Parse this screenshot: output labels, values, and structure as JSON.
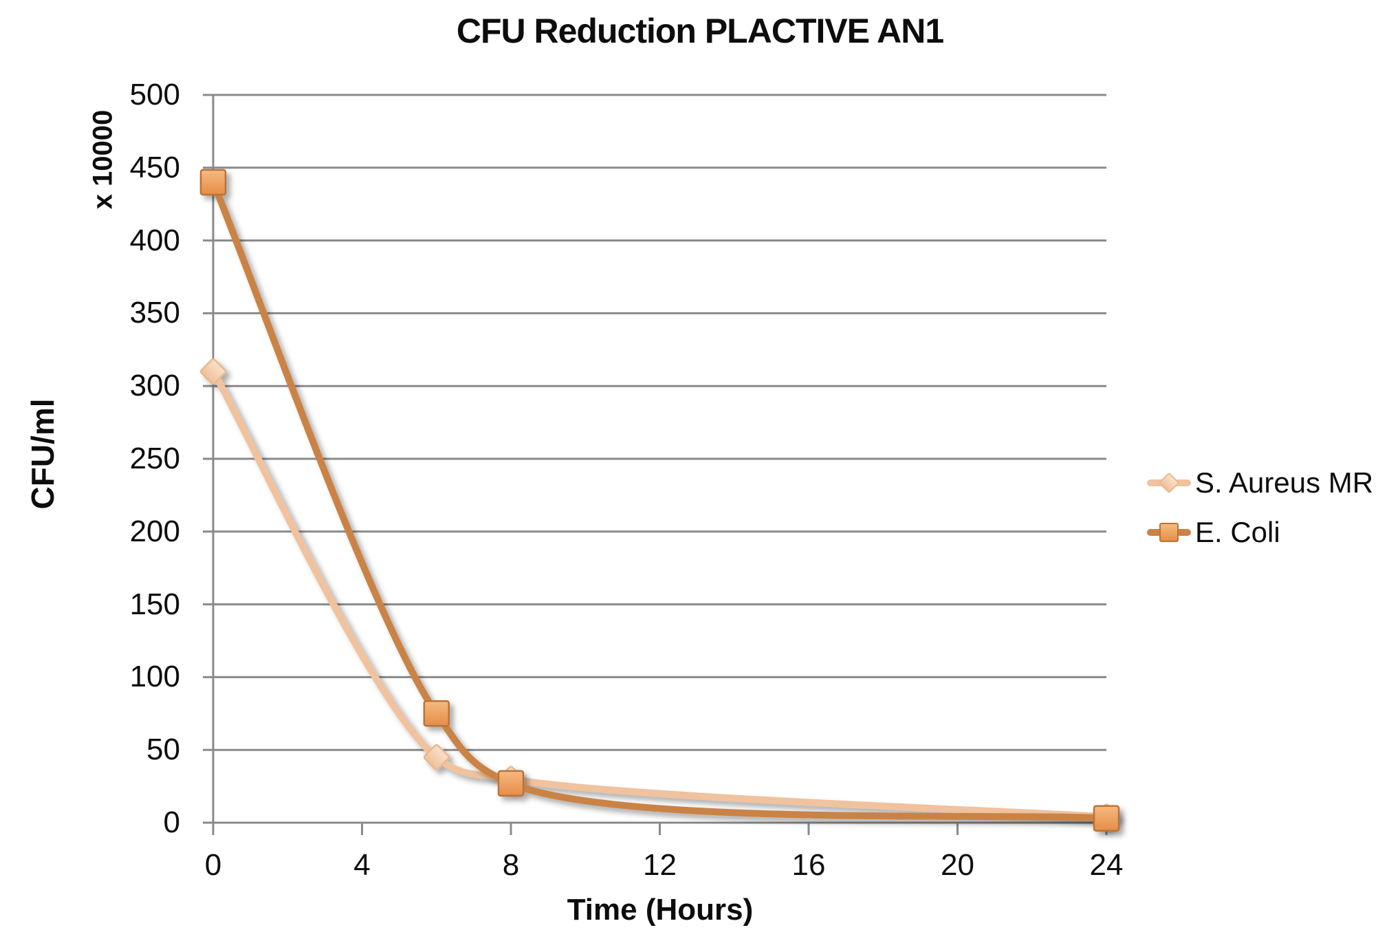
{
  "chart_data": {
    "type": "line",
    "title": "CFU Reduction PLACTIVE AN1",
    "xlabel": "Time (Hours)",
    "ylabel": "CFU/ml",
    "y_unit_label": "x 10000",
    "x": [
      0,
      6,
      8,
      24
    ],
    "series": [
      {
        "name": "S. Aureus MR",
        "marker": "diamond",
        "values": [
          310,
          45,
          30,
          4
        ],
        "line_color": "#F1C29E",
        "marker_fill_top": "#F9E1C9",
        "marker_fill_bottom": "#EFC09A",
        "marker_stroke": "#E9B88F"
      },
      {
        "name": "E. Coli",
        "marker": "square",
        "values": [
          440,
          75,
          27,
          3
        ],
        "line_color": "#CA8344",
        "marker_fill_top": "#F5BA80",
        "marker_fill_bottom": "#E68D48",
        "marker_stroke": "#BB7336"
      }
    ],
    "x_ticks": [
      0,
      4,
      8,
      12,
      16,
      20,
      24
    ],
    "y_ticks": [
      0,
      50,
      100,
      150,
      200,
      250,
      300,
      350,
      400,
      450,
      500
    ],
    "xlim": [
      0,
      24
    ],
    "ylim": [
      0,
      500
    ],
    "grid": "horizontal",
    "legend_position": "right",
    "grid_color": "#8A8A8A",
    "axis_color": "#8A8A8A",
    "text_color": "#0D0D0D",
    "background_color": "#FFFFFF"
  }
}
